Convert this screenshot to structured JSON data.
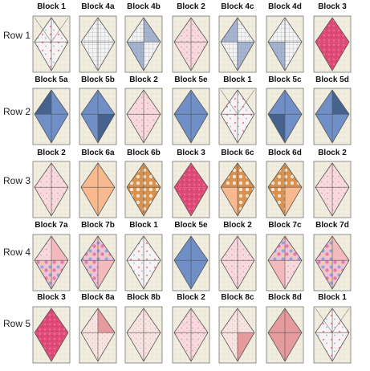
{
  "colors": {
    "cream": "#f1eee0",
    "cream_grid": "#e3dfcd",
    "border": "#777777",
    "outline": "#555555",
    "white_floral": "#f7f3f2",
    "blue": "#6f8fc6",
    "blue_dark": "#46628f",
    "blue_light": "#a6b4cf",
    "grid_white": "#f3f3f3",
    "grid_line": "#9aa2ad",
    "pink_light": "#f6dade",
    "pink_mid": "#f3b9bd",
    "pink_dot": "#eec6c7",
    "peach": "#f9b98e",
    "orange_dot": "#d8914e",
    "magenta": "#df4a79",
    "floral": "#efc3d6",
    "dusty_rose": "#e59a9c",
    "speckle": "#f7e4e1"
  },
  "rows": [
    {
      "label": "Row 1",
      "blocks": [
        {
          "name": "Block 1",
          "style": "whitefloral",
          "split": "diag",
          "tl": "white_floral",
          "tr": "white_floral",
          "bl": "white_floral",
          "br": "white_floral"
        },
        {
          "name": "Block 4a",
          "style": "grid",
          "split": "plain",
          "tl": "grid_white",
          "tr": "grid_white",
          "bl": "grid_white",
          "br": "grid_white"
        },
        {
          "name": "Block 4b",
          "style": "grid",
          "split": "plain",
          "tl": "grid_white",
          "tr": "blue_light",
          "bl": "blue_light",
          "br": "grid_white"
        },
        {
          "name": "Block 2",
          "style": "pinklight",
          "split": "plain",
          "tl": "pink_light",
          "tr": "pink_light",
          "bl": "pink_light",
          "br": "pink_light"
        },
        {
          "name": "Block 4c",
          "style": "grid",
          "split": "plain",
          "tl": "blue_light",
          "tr": "grid_white",
          "bl": "grid_white",
          "br": "blue_light"
        },
        {
          "name": "Block 4d",
          "style": "grid",
          "split": "plain",
          "tl": "grid_white",
          "tr": "grid_white",
          "bl": "blue_light",
          "br": "grid_white"
        },
        {
          "name": "Block 3",
          "style": "magenta",
          "split": "none",
          "tl": "magenta",
          "tr": "magenta",
          "bl": "magenta",
          "br": "magenta"
        }
      ]
    },
    {
      "label": "Row 2",
      "blocks": [
        {
          "name": "Block 5a",
          "style": "blue",
          "split": "plain",
          "tl": "blue_dark",
          "tr": "blue",
          "bl": "blue",
          "br": "blue"
        },
        {
          "name": "Block 5b",
          "style": "blue",
          "split": "plain",
          "tl": "blue",
          "tr": "blue",
          "bl": "blue",
          "br": "blue_dark"
        },
        {
          "name": "Block 2",
          "style": "pinklight",
          "split": "plain",
          "tl": "pink_light",
          "tr": "pink_light",
          "bl": "pink_light",
          "br": "pink_light"
        },
        {
          "name": "Block 5e",
          "style": "blue",
          "split": "plain",
          "tl": "blue",
          "tr": "blue",
          "bl": "blue",
          "br": "blue"
        },
        {
          "name": "Block 1",
          "style": "whitefloral",
          "split": "diag",
          "tl": "white_floral",
          "tr": "white_floral",
          "bl": "white_floral",
          "br": "white_floral"
        },
        {
          "name": "Block 5c",
          "style": "blue",
          "split": "plain",
          "tl": "blue",
          "tr": "blue",
          "bl": "blue_dark",
          "br": "blue"
        },
        {
          "name": "Block 5d",
          "style": "blue",
          "split": "plain",
          "tl": "blue",
          "tr": "blue_dark",
          "bl": "blue",
          "br": "blue"
        }
      ]
    },
    {
      "label": "Row 3",
      "blocks": [
        {
          "name": "Block 2",
          "style": "pinklight",
          "split": "plain",
          "tl": "pink_light",
          "tr": "pink_light",
          "bl": "pink_light",
          "br": "pink_light"
        },
        {
          "name": "Block 6a",
          "style": "orange",
          "split": "plain",
          "tl": "peach",
          "tr": "peach",
          "bl": "peach",
          "br": "peach"
        },
        {
          "name": "Block 6b",
          "style": "orange",
          "split": "plain",
          "tl": "orange_dot",
          "tr": "orange_dot",
          "bl": "orange_dot",
          "br": "orange_dot"
        },
        {
          "name": "Block 3",
          "style": "magenta",
          "split": "none",
          "tl": "magenta",
          "tr": "magenta",
          "bl": "magenta",
          "br": "magenta"
        },
        {
          "name": "Block 6c",
          "style": "orange",
          "split": "plain",
          "tl": "orange_dot",
          "tr": "orange_dot",
          "bl": "peach",
          "br": "orange_dot"
        },
        {
          "name": "Block 6d",
          "style": "orange",
          "split": "plain",
          "tl": "orange_dot",
          "tr": "orange_dot",
          "bl": "orange_dot",
          "br": "peach"
        },
        {
          "name": "Block 2",
          "style": "pinklight",
          "split": "plain",
          "tl": "pink_light",
          "tr": "pink_light",
          "bl": "pink_light",
          "br": "pink_light"
        }
      ]
    },
    {
      "label": "Row 4",
      "blocks": [
        {
          "name": "Block 7a",
          "style": "floral",
          "split": "plain",
          "tl": "pink_light",
          "tr": "pink_mid",
          "bl": "floral",
          "br": "floral"
        },
        {
          "name": "Block 7b",
          "style": "floral",
          "split": "plain",
          "tl": "floral",
          "tr": "floral",
          "bl": "floral",
          "br": "pink_mid"
        },
        {
          "name": "Block 1",
          "style": "whitefloral",
          "split": "plain",
          "tl": "white_floral",
          "tr": "white_floral",
          "bl": "white_floral",
          "br": "white_floral"
        },
        {
          "name": "Block 5e",
          "style": "blue",
          "split": "plain",
          "tl": "blue",
          "tr": "blue",
          "bl": "blue",
          "br": "blue"
        },
        {
          "name": "Block 2",
          "style": "pinklight",
          "split": "plain",
          "tl": "pink_light",
          "tr": "pink_light",
          "bl": "pink_light",
          "br": "pink_light"
        },
        {
          "name": "Block 7c",
          "style": "floral",
          "split": "plain",
          "tl": "floral",
          "tr": "floral",
          "bl": "pink_mid",
          "br": "pink_light"
        },
        {
          "name": "Block 7d",
          "style": "floral",
          "split": "plain",
          "tl": "floral",
          "tr": "pink_mid",
          "bl": "floral",
          "br": "floral"
        }
      ]
    },
    {
      "label": "Row 5",
      "blocks": [
        {
          "name": "Block 3",
          "style": "magenta",
          "split": "none",
          "tl": "magenta",
          "tr": "magenta",
          "bl": "magenta",
          "br": "magenta"
        },
        {
          "name": "Block 8a",
          "style": "rose",
          "split": "plain",
          "tl": "speckle",
          "tr": "dusty_rose",
          "bl": "speckle",
          "br": "speckle"
        },
        {
          "name": "Block 8b",
          "style": "rose",
          "split": "plain",
          "tl": "speckle",
          "tr": "speckle",
          "bl": "speckle",
          "br": "speckle"
        },
        {
          "name": "Block 2",
          "style": "pinklight",
          "split": "plain",
          "tl": "pink_light",
          "tr": "pink_light",
          "bl": "pink_light",
          "br": "pink_light"
        },
        {
          "name": "Block 8c",
          "style": "rose",
          "split": "plain",
          "tl": "speckle",
          "tr": "speckle",
          "bl": "speckle",
          "br": "dusty_rose"
        },
        {
          "name": "Block 8d",
          "style": "rose",
          "split": "plain",
          "tl": "dusty_rose",
          "tr": "dusty_rose",
          "bl": "dusty_rose",
          "br": "dusty_rose"
        },
        {
          "name": "Block 1",
          "style": "whitefloral",
          "split": "diag",
          "tl": "white_floral",
          "tr": "white_floral",
          "bl": "white_floral",
          "br": "white_floral"
        }
      ]
    }
  ]
}
